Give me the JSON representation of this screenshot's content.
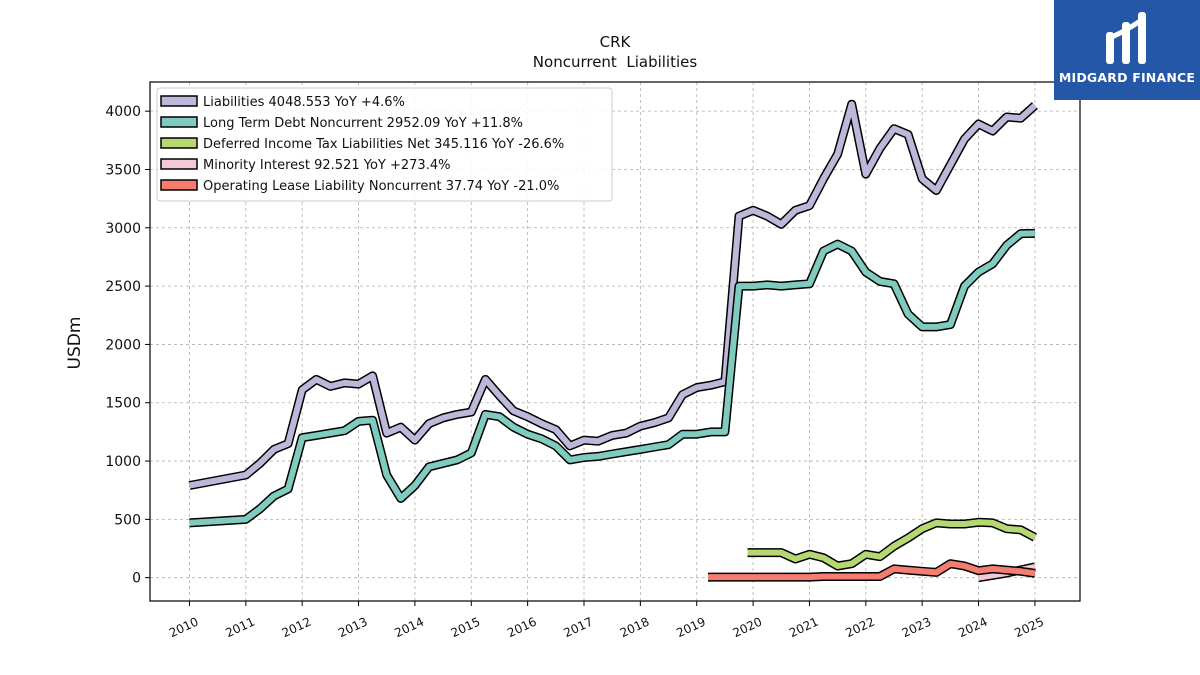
{
  "chart_data": {
    "type": "line",
    "title": "CRK",
    "subtitle": "Noncurrent  Liabilities",
    "ylabel": "USDm",
    "xlabel": "",
    "xlim": [
      2009.3,
      2025.8
    ],
    "ylim": [
      -200,
      4250
    ],
    "yticks": [
      0,
      500,
      1000,
      1500,
      2000,
      2500,
      3000,
      3500,
      4000
    ],
    "xticks": [
      2010,
      2011,
      2012,
      2013,
      2014,
      2015,
      2016,
      2017,
      2018,
      2019,
      2020,
      2021,
      2022,
      2023,
      2024,
      2025
    ],
    "grid": true,
    "legend_position": "top-left",
    "series": [
      {
        "name": "Liabilities  4048.553 YoY +4.6%",
        "color": "#bcb8d9",
        "points": [
          [
            2010.0,
            790
          ],
          [
            2011.0,
            880
          ],
          [
            2011.25,
            980
          ],
          [
            2011.5,
            1100
          ],
          [
            2011.75,
            1150
          ],
          [
            2012.0,
            1610
          ],
          [
            2012.25,
            1700
          ],
          [
            2012.5,
            1640
          ],
          [
            2012.75,
            1670
          ],
          [
            2013.0,
            1660
          ],
          [
            2013.25,
            1730
          ],
          [
            2013.5,
            1240
          ],
          [
            2013.75,
            1290
          ],
          [
            2014.0,
            1180
          ],
          [
            2014.25,
            1320
          ],
          [
            2014.5,
            1370
          ],
          [
            2014.75,
            1400
          ],
          [
            2015.0,
            1420
          ],
          [
            2015.25,
            1700
          ],
          [
            2015.5,
            1560
          ],
          [
            2015.75,
            1430
          ],
          [
            2016.0,
            1380
          ],
          [
            2016.25,
            1320
          ],
          [
            2016.5,
            1270
          ],
          [
            2016.75,
            1130
          ],
          [
            2017.0,
            1180
          ],
          [
            2017.25,
            1170
          ],
          [
            2017.5,
            1220
          ],
          [
            2017.75,
            1240
          ],
          [
            2018.0,
            1300
          ],
          [
            2018.25,
            1330
          ],
          [
            2018.5,
            1370
          ],
          [
            2018.75,
            1570
          ],
          [
            2019.0,
            1630
          ],
          [
            2019.25,
            1650
          ],
          [
            2019.5,
            1680
          ],
          [
            2019.75,
            3100
          ],
          [
            2020.0,
            3150
          ],
          [
            2020.25,
            3100
          ],
          [
            2020.5,
            3030
          ],
          [
            2020.75,
            3150
          ],
          [
            2021.0,
            3190
          ],
          [
            2021.25,
            3420
          ],
          [
            2021.5,
            3630
          ],
          [
            2021.75,
            4060
          ],
          [
            2022.0,
            3460
          ],
          [
            2022.25,
            3680
          ],
          [
            2022.5,
            3850
          ],
          [
            2022.75,
            3800
          ],
          [
            2023.0,
            3420
          ],
          [
            2023.25,
            3320
          ],
          [
            2023.5,
            3540
          ],
          [
            2023.75,
            3760
          ],
          [
            2024.0,
            3890
          ],
          [
            2024.25,
            3830
          ],
          [
            2024.5,
            3950
          ],
          [
            2024.75,
            3940
          ],
          [
            2025.0,
            4048.553
          ]
        ]
      },
      {
        "name": "Long Term Debt Noncurrent  2952.09 YoY +11.8%",
        "color": "#80cbbf",
        "points": [
          [
            2010.0,
            470
          ],
          [
            2011.0,
            500
          ],
          [
            2011.25,
            590
          ],
          [
            2011.5,
            700
          ],
          [
            2011.75,
            760
          ],
          [
            2012.0,
            1200
          ],
          [
            2012.25,
            1220
          ],
          [
            2012.5,
            1240
          ],
          [
            2012.75,
            1260
          ],
          [
            2013.0,
            1340
          ],
          [
            2013.25,
            1350
          ],
          [
            2013.5,
            880
          ],
          [
            2013.75,
            680
          ],
          [
            2014.0,
            790
          ],
          [
            2014.25,
            950
          ],
          [
            2014.5,
            980
          ],
          [
            2014.75,
            1010
          ],
          [
            2015.0,
            1070
          ],
          [
            2015.25,
            1400
          ],
          [
            2015.5,
            1380
          ],
          [
            2015.75,
            1290
          ],
          [
            2016.0,
            1230
          ],
          [
            2016.25,
            1190
          ],
          [
            2016.5,
            1130
          ],
          [
            2016.75,
            1010
          ],
          [
            2017.0,
            1030
          ],
          [
            2017.25,
            1040
          ],
          [
            2017.5,
            1060
          ],
          [
            2017.75,
            1080
          ],
          [
            2018.0,
            1100
          ],
          [
            2018.25,
            1120
          ],
          [
            2018.5,
            1140
          ],
          [
            2018.75,
            1230
          ],
          [
            2019.0,
            1230
          ],
          [
            2019.25,
            1250
          ],
          [
            2019.5,
            1250
          ],
          [
            2019.75,
            2500
          ],
          [
            2020.0,
            2500
          ],
          [
            2020.25,
            2510
          ],
          [
            2020.5,
            2500
          ],
          [
            2020.75,
            2510
          ],
          [
            2021.0,
            2520
          ],
          [
            2021.25,
            2800
          ],
          [
            2021.5,
            2860
          ],
          [
            2021.75,
            2800
          ],
          [
            2022.0,
            2620
          ],
          [
            2022.25,
            2540
          ],
          [
            2022.5,
            2520
          ],
          [
            2022.75,
            2260
          ],
          [
            2023.0,
            2150
          ],
          [
            2023.25,
            2150
          ],
          [
            2023.5,
            2170
          ],
          [
            2023.75,
            2500
          ],
          [
            2024.0,
            2620
          ],
          [
            2024.25,
            2690
          ],
          [
            2024.5,
            2850
          ],
          [
            2024.75,
            2950
          ],
          [
            2025.0,
            2952.09
          ]
        ]
      },
      {
        "name": "Deferred Income Tax Liabilities Net  345.116 YoY -26.6%",
        "color": "#b5d872",
        "points": [
          [
            2019.9,
            215
          ],
          [
            2020.25,
            215
          ],
          [
            2020.5,
            215
          ],
          [
            2020.75,
            160
          ],
          [
            2021.0,
            200
          ],
          [
            2021.25,
            170
          ],
          [
            2021.5,
            100
          ],
          [
            2021.75,
            120
          ],
          [
            2022.0,
            200
          ],
          [
            2022.25,
            180
          ],
          [
            2022.5,
            270
          ],
          [
            2022.75,
            340
          ],
          [
            2023.0,
            420
          ],
          [
            2023.25,
            470
          ],
          [
            2023.5,
            460
          ],
          [
            2023.75,
            460
          ],
          [
            2024.0,
            475
          ],
          [
            2024.25,
            470
          ],
          [
            2024.5,
            420
          ],
          [
            2024.75,
            410
          ],
          [
            2025.0,
            345.116
          ]
        ]
      },
      {
        "name": "Minority Interest  92.521 YoY +273.4%",
        "color": "#f3c9d9",
        "points": [
          [
            2024.0,
            0
          ],
          [
            2024.5,
            40
          ],
          [
            2025.0,
            92.521
          ]
        ]
      },
      {
        "name": "Operating Lease Liability Noncurrent  37.74 YoY -21.0%",
        "color": "#f47d70",
        "points": [
          [
            2019.2,
            5
          ],
          [
            2019.5,
            5
          ],
          [
            2020.0,
            5
          ],
          [
            2020.5,
            5
          ],
          [
            2021.0,
            5
          ],
          [
            2021.25,
            10
          ],
          [
            2021.5,
            10
          ],
          [
            2021.75,
            10
          ],
          [
            2022.0,
            10
          ],
          [
            2022.25,
            10
          ],
          [
            2022.5,
            75
          ],
          [
            2022.75,
            65
          ],
          [
            2023.0,
            55
          ],
          [
            2023.25,
            45
          ],
          [
            2023.5,
            120
          ],
          [
            2023.75,
            100
          ],
          [
            2024.0,
            60
          ],
          [
            2024.25,
            75
          ],
          [
            2024.5,
            65
          ],
          [
            2024.75,
            55
          ],
          [
            2025.0,
            37.74
          ]
        ]
      }
    ]
  },
  "logo": {
    "text": "MIDGARD FINANCE",
    "background": "#2557a7"
  }
}
